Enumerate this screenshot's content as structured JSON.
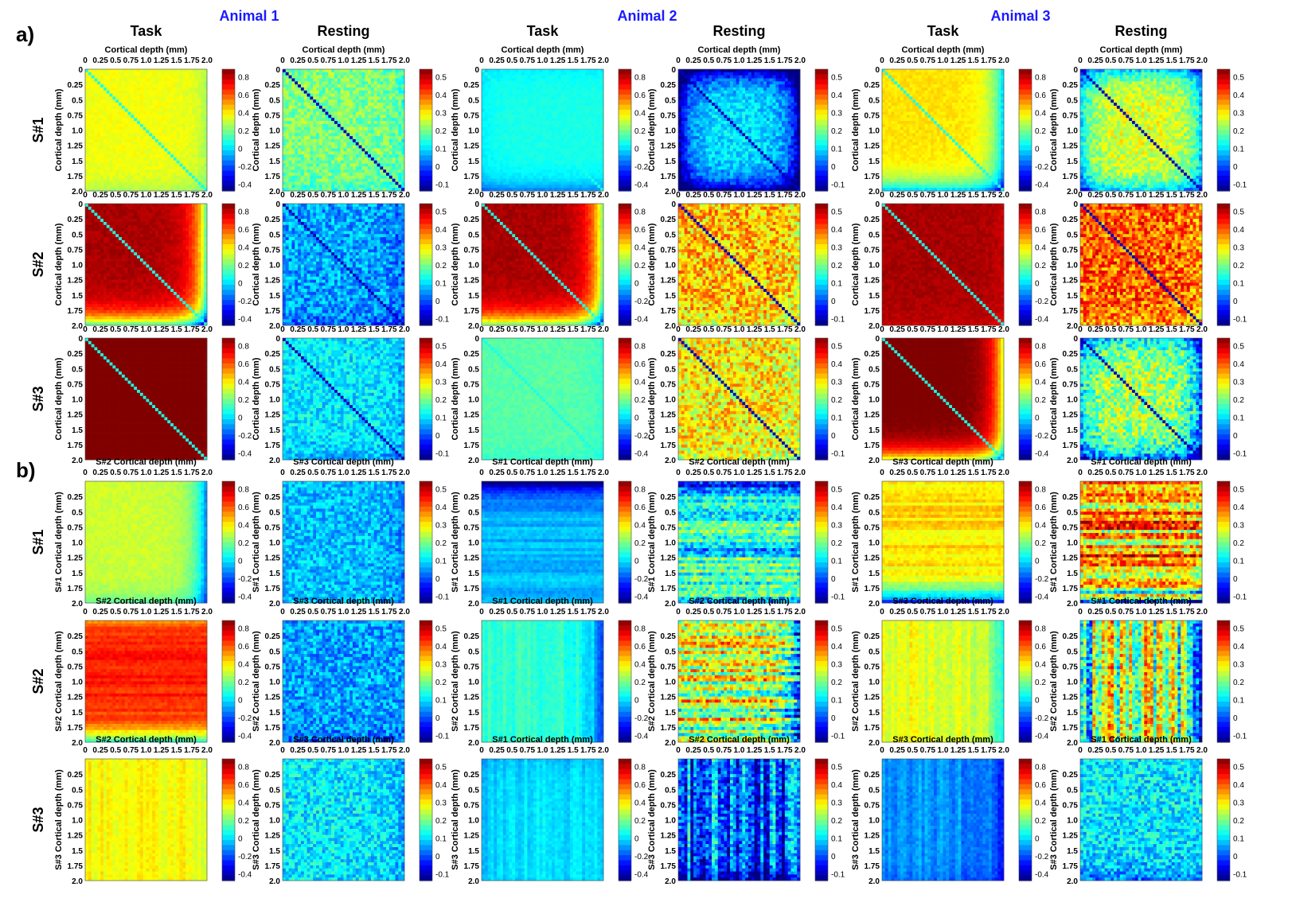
{
  "panel_labels": [
    "a)",
    "b)"
  ],
  "animals": [
    "Animal 1",
    "Animal 2",
    "Animal 3"
  ],
  "conditions": [
    "Task",
    "Resting"
  ],
  "rows_a": [
    "S#1",
    "S#2",
    "S#3"
  ],
  "rows_b": [
    "S#1",
    "S#2",
    "S#3"
  ],
  "axis_label": "Cortical depth (mm)",
  "a_top_axis_title": "Cortical depth (mm)",
  "b_top_titles": [
    "S#2 Cortical depth (mm)",
    "S#3 Cortical depth (mm)",
    "S#1 Cortical depth (mm)"
  ],
  "b_left_titles": [
    "S#1 Cortical depth (mm)",
    "S#2 Cortical depth (mm)",
    "S#3 Cortical depth (mm)"
  ],
  "top_ticks": [
    "0",
    "0.25",
    "0.5",
    "0.75",
    "1.0",
    "1.25",
    "1.5",
    "1.75",
    "2.0"
  ],
  "left_ticks_a": [
    "0",
    "0.25",
    "0.5",
    "0.75",
    "1.0",
    "1.25",
    "1.5",
    "1.75",
    "2.0"
  ],
  "left_ticks_b": [
    "0.25",
    "0.5",
    "0.75",
    "1.0",
    "1.25",
    "1.5",
    "1.75",
    "2.0"
  ],
  "colorbar_task": {
    "range": [
      -0.4,
      0.9
    ],
    "ticks": [
      "0.8",
      "0.6",
      "0.4",
      "0.2",
      "0",
      "-0.2",
      "-0.4"
    ]
  },
  "colorbar_rest": {
    "range": [
      -0.1,
      0.6
    ],
    "ticks": [
      "0.5",
      "0.4",
      "0.3",
      "0.2",
      "0.1",
      "0",
      "-0.1"
    ]
  },
  "colors": {
    "animal_title": "#1a1aff",
    "text": "#000000",
    "colormap": "jet"
  },
  "chart_data": {
    "type": "heatmap",
    "grid_size": 40,
    "x_range_mm": [
      0,
      2.0
    ],
    "y_range_mm": [
      0,
      2.0
    ],
    "colormap": "jet",
    "panel_a": "within-session depth-depth correlation matrices (diagonal drawn)",
    "panel_b": "cross-session depth-depth correlation matrices",
    "panels": [
      {
        "id": "a-r0-c0",
        "a": 0.4,
        "b": 0.35,
        "s": {
          "t": 0.0,
          "b": 0.1,
          "l": 0.0,
          "r": 0.1
        },
        "d": 1,
        "h": 0,
        "v": 0,
        "n": 0.03
      },
      {
        "id": "a-r0-c1",
        "a": 0.25,
        "b": 0.3,
        "s": {
          "t": 0.0,
          "b": 0.05,
          "l": 0.0,
          "r": 0.05
        },
        "d": 2,
        "h": 0,
        "v": 0,
        "n": 0.06
      },
      {
        "id": "a-r0-c2",
        "a": 0.12,
        "b": 0.25,
        "s": {
          "t": 0.05,
          "b": 0.2,
          "l": 0.05,
          "r": 0.0
        },
        "d": 1,
        "h": 0,
        "v": 0,
        "n": 0.02
      },
      {
        "id": "a-r0-c3",
        "a": 0.15,
        "b": 0.32,
        "s": {
          "t": 0.25,
          "b": 0.25,
          "l": 0.25,
          "r": 0.25
        },
        "d": 2,
        "h": 0,
        "v": 0,
        "n": 0.05
      },
      {
        "id": "a-r0-c4",
        "a": 0.45,
        "b": 0.25,
        "s": {
          "t": 0.0,
          "b": 0.45,
          "l": 0.0,
          "r": 0.45
        },
        "d": 1,
        "h": 0,
        "v": 0,
        "n": 0.03
      },
      {
        "id": "a-r0-c5",
        "a": 0.32,
        "b": 0.3,
        "s": {
          "t": 0.2,
          "b": 0.2,
          "l": 0.2,
          "r": 0.2
        },
        "d": 2,
        "h": 0,
        "v": 0,
        "n": 0.06
      },
      {
        "id": "a-r1-c0",
        "a": 0.85,
        "b": 0.15,
        "s": {
          "t": 0.0,
          "b": 0.7,
          "l": 0.0,
          "r": 0.7
        },
        "d": 1,
        "h": 0,
        "v": 0,
        "n": 0.03
      },
      {
        "id": "a-r1-c1",
        "a": 0.1,
        "b": 0.15,
        "s": {
          "t": 0.0,
          "b": 0.05,
          "l": 0.0,
          "r": 0.05
        },
        "d": 2,
        "h": 0,
        "v": 0,
        "n": 0.07
      },
      {
        "id": "a-r1-c2",
        "a": 0.85,
        "b": 0.25,
        "s": {
          "t": 0.0,
          "b": 0.65,
          "l": 0.0,
          "r": 0.65
        },
        "d": 1,
        "h": 0,
        "v": 0,
        "n": 0.03
      },
      {
        "id": "a-r1-c3",
        "a": 0.38,
        "b": 0.15,
        "s": {
          "t": 0.0,
          "b": 0.05,
          "l": 0.0,
          "r": 0.05
        },
        "d": 2,
        "h": 0,
        "v": 0,
        "n": 0.1
      },
      {
        "id": "a-r1-c4",
        "a": 0.85,
        "b": 0.05,
        "s": {
          "t": 0.0,
          "b": 0.05,
          "l": 0.0,
          "r": 0.05
        },
        "d": 1,
        "h": 0,
        "v": 0,
        "n": 0.03
      },
      {
        "id": "a-r1-c5",
        "a": 0.45,
        "b": 0.2,
        "s": {
          "t": 0.0,
          "b": 0.05,
          "l": 0.0,
          "r": 0.05
        },
        "d": 2,
        "h": 0,
        "v": 0,
        "n": 0.1
      },
      {
        "id": "a-r2-c0",
        "a": 0.95,
        "b": 0.05,
        "s": {
          "t": 0.0,
          "b": 0.05,
          "l": 0.0,
          "r": 0.05
        },
        "d": 1,
        "h": 0,
        "v": 0,
        "n": 0.02
      },
      {
        "id": "a-r2-c1",
        "a": 0.15,
        "b": 0.2,
        "s": {
          "t": 0.0,
          "b": 0.05,
          "l": 0.0,
          "r": 0.05
        },
        "d": 2,
        "h": 0,
        "v": 0,
        "n": 0.06
      },
      {
        "id": "a-r2-c2",
        "a": 0.2,
        "b": 0.25,
        "s": {
          "t": 0.0,
          "b": 0.05,
          "l": 0.0,
          "r": 0.05
        },
        "d": 1,
        "h": 0,
        "v": 0,
        "n": 0.03
      },
      {
        "id": "a-r2-c3",
        "a": 0.35,
        "b": 0.2,
        "s": {
          "t": 0.0,
          "b": 0.05,
          "l": 0.0,
          "r": 0.05
        },
        "d": 2,
        "h": 0,
        "v": 0,
        "n": 0.1
      },
      {
        "id": "a-r2-c4",
        "a": 0.92,
        "b": 0.1,
        "s": {
          "t": 0.0,
          "b": 0.6,
          "l": 0.0,
          "r": 0.6
        },
        "d": 1,
        "h": 0,
        "v": 0,
        "n": 0.02
      },
      {
        "id": "a-r2-c5",
        "a": 0.28,
        "b": 0.25,
        "s": {
          "t": 0.15,
          "b": 0.25,
          "l": 0.15,
          "r": 0.25
        },
        "d": 2,
        "h": 0,
        "v": 0,
        "n": 0.1
      },
      {
        "id": "b-r0-c0",
        "a": 0.35,
        "b": 0.25,
        "s": {
          "t": 0.0,
          "b": 0.15,
          "l": 0.0,
          "r": 0.45
        },
        "d": 0,
        "h": 0,
        "v": 0,
        "n": 0.03
      },
      {
        "id": "b-r0-c1",
        "a": 0.12,
        "b": 0.2,
        "s": {
          "t": 0.0,
          "b": 0.0,
          "l": 0.0,
          "r": 0.05
        },
        "d": 0,
        "h": 0,
        "v": 0,
        "n": 0.06
      },
      {
        "id": "b-r0-c2",
        "a": 0.0,
        "b": 0.25,
        "s": {
          "t": 0.5,
          "b": 0.0,
          "l": 0.0,
          "r": 0.0
        },
        "d": 0,
        "h": 1,
        "v": 0,
        "n": 0.03
      },
      {
        "id": "b-r0-c3",
        "a": 0.18,
        "b": 0.25,
        "s": {
          "t": 0.15,
          "b": 0.0,
          "l": 0.0,
          "r": 0.0
        },
        "d": 0,
        "h": 1,
        "v": 0,
        "n": 0.08
      },
      {
        "id": "b-r0-c4",
        "a": 0.45,
        "b": 0.2,
        "s": {
          "t": 0.0,
          "b": 0.75,
          "l": 0.0,
          "r": 0.0
        },
        "d": 0,
        "h": 1,
        "v": 0,
        "n": 0.04
      },
      {
        "id": "b-r0-c5",
        "a": 0.4,
        "b": 0.25,
        "s": {
          "t": 0.0,
          "b": 0.35,
          "l": 0.0,
          "r": 0.05
        },
        "d": 0,
        "h": 1,
        "v": 0,
        "n": 0.1
      },
      {
        "id": "b-r1-c0",
        "a": 0.7,
        "b": 0.15,
        "s": {
          "t": 0.15,
          "b": 0.6,
          "l": 0.0,
          "r": 0.0
        },
        "d": 0,
        "h": 1,
        "v": 0,
        "n": 0.03
      },
      {
        "id": "b-r1-c1",
        "a": 0.1,
        "b": 0.2,
        "s": {
          "t": 0.0,
          "b": 0.05,
          "l": 0.0,
          "r": 0.0
        },
        "d": 0,
        "h": 0,
        "v": 0,
        "n": 0.07
      },
      {
        "id": "b-r1-c2",
        "a": 0.15,
        "b": 0.3,
        "s": {
          "t": 0.0,
          "b": 0.0,
          "l": 0.0,
          "r": 0.35
        },
        "d": 0,
        "h": 0,
        "v": 1,
        "n": 0.03
      },
      {
        "id": "b-r1-c3",
        "a": 0.3,
        "b": 0.2,
        "s": {
          "t": 0.0,
          "b": 0.0,
          "l": 0.0,
          "r": 0.3
        },
        "d": 0,
        "h": 1,
        "v": 0,
        "n": 0.1
      },
      {
        "id": "b-r1-c4",
        "a": 0.38,
        "b": 0.25,
        "s": {
          "t": 0.0,
          "b": 0.0,
          "l": 0.0,
          "r": 0.35
        },
        "d": 0,
        "h": 0,
        "v": 1,
        "n": 0.04
      },
      {
        "id": "b-r1-c5",
        "a": 0.3,
        "b": 0.2,
        "s": {
          "t": 0.0,
          "b": 0.0,
          "l": 0.25,
          "r": 0.45
        },
        "d": 0,
        "h": 0,
        "v": 1,
        "n": 0.1
      },
      {
        "id": "b-r2-c0",
        "a": 0.42,
        "b": 0.2,
        "s": {
          "t": 0.0,
          "b": 0.0,
          "l": 0.0,
          "r": 0.1
        },
        "d": 0,
        "h": 0,
        "v": 1,
        "n": 0.03
      },
      {
        "id": "b-r2-c1",
        "a": 0.15,
        "b": 0.25,
        "s": {
          "t": 0.0,
          "b": 0.0,
          "l": 0.0,
          "r": 0.05
        },
        "d": 0,
        "h": 0,
        "v": 0,
        "n": 0.07
      },
      {
        "id": "b-r2-c2",
        "a": 0.05,
        "b": 0.25,
        "s": {
          "t": 0.05,
          "b": 0.0,
          "l": 0.05,
          "r": 0.0
        },
        "d": 0,
        "h": 0,
        "v": 1,
        "n": 0.03
      },
      {
        "id": "b-r2-c3",
        "a": 0.05,
        "b": 0.15,
        "s": {
          "t": 0.0,
          "b": 0.15,
          "l": 0.0,
          "r": 0.0
        },
        "d": 0,
        "h": 0,
        "v": 1,
        "n": 0.09
      },
      {
        "id": "b-r2-c4",
        "a": -0.05,
        "b": 0.2,
        "s": {
          "t": 0.0,
          "b": 0.05,
          "l": 0.0,
          "r": 0.2
        },
        "d": 0,
        "h": 0,
        "v": 1,
        "n": 0.04
      },
      {
        "id": "b-r2-c5",
        "a": 0.15,
        "b": 0.25,
        "s": {
          "t": 0.0,
          "b": 0.1,
          "l": 0.0,
          "r": 0.0
        },
        "d": 0,
        "h": 0,
        "v": 0,
        "n": 0.08
      }
    ]
  }
}
